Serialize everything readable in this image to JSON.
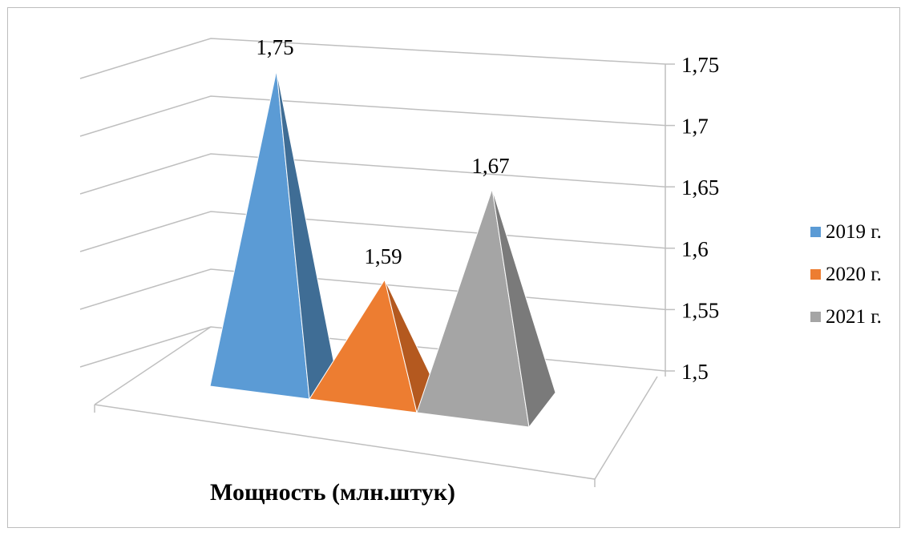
{
  "chart_data": {
    "type": "bar",
    "style": "3d-pyramid",
    "categories": [
      ""
    ],
    "series": [
      {
        "name": "2019 г.",
        "values": [
          1.75
        ],
        "data_label": "1,75",
        "color": "#5B9BD5",
        "side_color": "#3F6D95"
      },
      {
        "name": "2020 г.",
        "values": [
          1.59
        ],
        "data_label": "1,59",
        "color": "#ED7D31",
        "side_color": "#B4591F"
      },
      {
        "name": "2021 г.",
        "values": [
          1.67
        ],
        "data_label": "1,67",
        "color": "#A5A5A5",
        "side_color": "#7A7A7A"
      }
    ],
    "xlabel": "Мощность (млн.штук)",
    "ylabel": "",
    "ylim": [
      1.5,
      1.75
    ],
    "yticks": [
      {
        "value": 1.5,
        "label": "1,5"
      },
      {
        "value": 1.55,
        "label": "1,55"
      },
      {
        "value": 1.6,
        "label": "1,6"
      },
      {
        "value": 1.65,
        "label": "1,65"
      },
      {
        "value": 1.7,
        "label": "1,7"
      },
      {
        "value": 1.75,
        "label": "1,75"
      }
    ],
    "grid": true,
    "legend": "right",
    "gridline_color": "#BFBFBF"
  }
}
